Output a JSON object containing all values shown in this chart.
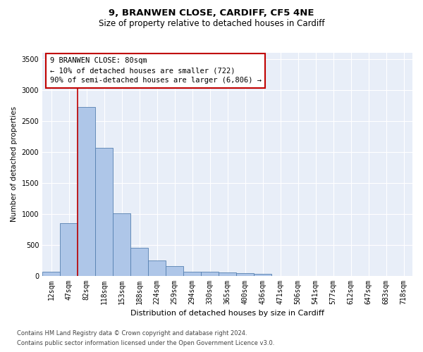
{
  "title1": "9, BRANWEN CLOSE, CARDIFF, CF5 4NE",
  "title2": "Size of property relative to detached houses in Cardiff",
  "xlabel": "Distribution of detached houses by size in Cardiff",
  "ylabel": "Number of detached properties",
  "categories": [
    "12sqm",
    "47sqm",
    "82sqm",
    "118sqm",
    "153sqm",
    "188sqm",
    "224sqm",
    "259sqm",
    "294sqm",
    "330sqm",
    "365sqm",
    "400sqm",
    "436sqm",
    "471sqm",
    "506sqm",
    "541sqm",
    "577sqm",
    "612sqm",
    "647sqm",
    "683sqm",
    "718sqm"
  ],
  "bar_values": [
    60,
    850,
    2720,
    2060,
    1005,
    455,
    245,
    155,
    65,
    60,
    50,
    35,
    25,
    0,
    0,
    0,
    0,
    0,
    0,
    0,
    0
  ],
  "bar_color": "#aec6e8",
  "bar_edge_color": "#5580b0",
  "vline_color": "#c00000",
  "vline_x_index": 2,
  "annotation_text": "9 BRANWEN CLOSE: 80sqm\n← 10% of detached houses are smaller (722)\n90% of semi-detached houses are larger (6,806) →",
  "annotation_box_color": "#ffffff",
  "annotation_box_edge": "#c00000",
  "ylim": [
    0,
    3600
  ],
  "yticks": [
    0,
    500,
    1000,
    1500,
    2000,
    2500,
    3000,
    3500
  ],
  "bg_color": "#e8eef8",
  "footer1": "Contains HM Land Registry data © Crown copyright and database right 2024.",
  "footer2": "Contains public sector information licensed under the Open Government Licence v3.0.",
  "title_fontsize": 9.5,
  "subtitle_fontsize": 8.5,
  "xlabel_fontsize": 8,
  "ylabel_fontsize": 7.5,
  "tick_fontsize": 7,
  "annotation_fontsize": 7.5,
  "footer_fontsize": 6
}
